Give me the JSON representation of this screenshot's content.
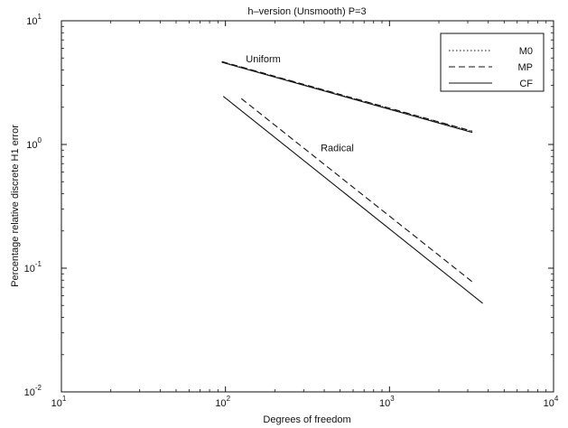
{
  "chart_data": {
    "type": "line",
    "title": "h–version (Unsmooth) P=3",
    "xlabel": "Degrees of freedom",
    "ylabel": "Percentage relative discrete H1 error",
    "xscale": "log",
    "yscale": "log",
    "xlim": [
      10,
      10000
    ],
    "ylim": [
      0.01,
      10
    ],
    "x_ticks": [
      {
        "value": 10,
        "base": "10",
        "exp": "1"
      },
      {
        "value": 100,
        "base": "10",
        "exp": "2"
      },
      {
        "value": 1000,
        "base": "10",
        "exp": "3"
      },
      {
        "value": 10000,
        "base": "10",
        "exp": "4"
      }
    ],
    "y_ticks": [
      {
        "value": 0.01,
        "base": "10",
        "exp": "-2"
      },
      {
        "value": 0.1,
        "base": "10",
        "exp": "-1"
      },
      {
        "value": 1,
        "base": "10",
        "exp": "0"
      },
      {
        "value": 10,
        "base": "10",
        "exp": "1"
      }
    ],
    "grid": false,
    "legend": {
      "placement": "top-right",
      "entries": [
        {
          "name": "M0",
          "style": "dotted"
        },
        {
          "name": "MP",
          "style": "dashed"
        },
        {
          "name": "CF",
          "style": "solid"
        }
      ]
    },
    "annotations": [
      {
        "text": "Uniform",
        "x": 170,
        "y": 4.6
      },
      {
        "text": "Radical",
        "x": 480,
        "y": 0.88
      }
    ],
    "series": [
      {
        "group": "Uniform",
        "estimator": "M0",
        "style": "dotted",
        "x": [
          95,
          3200
        ],
        "y": [
          4.65,
          1.27
        ]
      },
      {
        "group": "Uniform",
        "estimator": "MP",
        "style": "dashed",
        "x": [
          95,
          3200
        ],
        "y": [
          4.68,
          1.28
        ]
      },
      {
        "group": "Uniform",
        "estimator": "CF",
        "style": "solid",
        "x": [
          95,
          3200
        ],
        "y": [
          4.62,
          1.25
        ]
      },
      {
        "group": "Radical",
        "estimator": "MP",
        "style": "dashed",
        "x": [
          125,
          3300
        ],
        "y": [
          2.35,
          0.075
        ]
      },
      {
        "group": "Radical",
        "estimator": "CF",
        "style": "solid",
        "x": [
          97,
          3700
        ],
        "y": [
          2.45,
          0.052
        ]
      }
    ]
  }
}
